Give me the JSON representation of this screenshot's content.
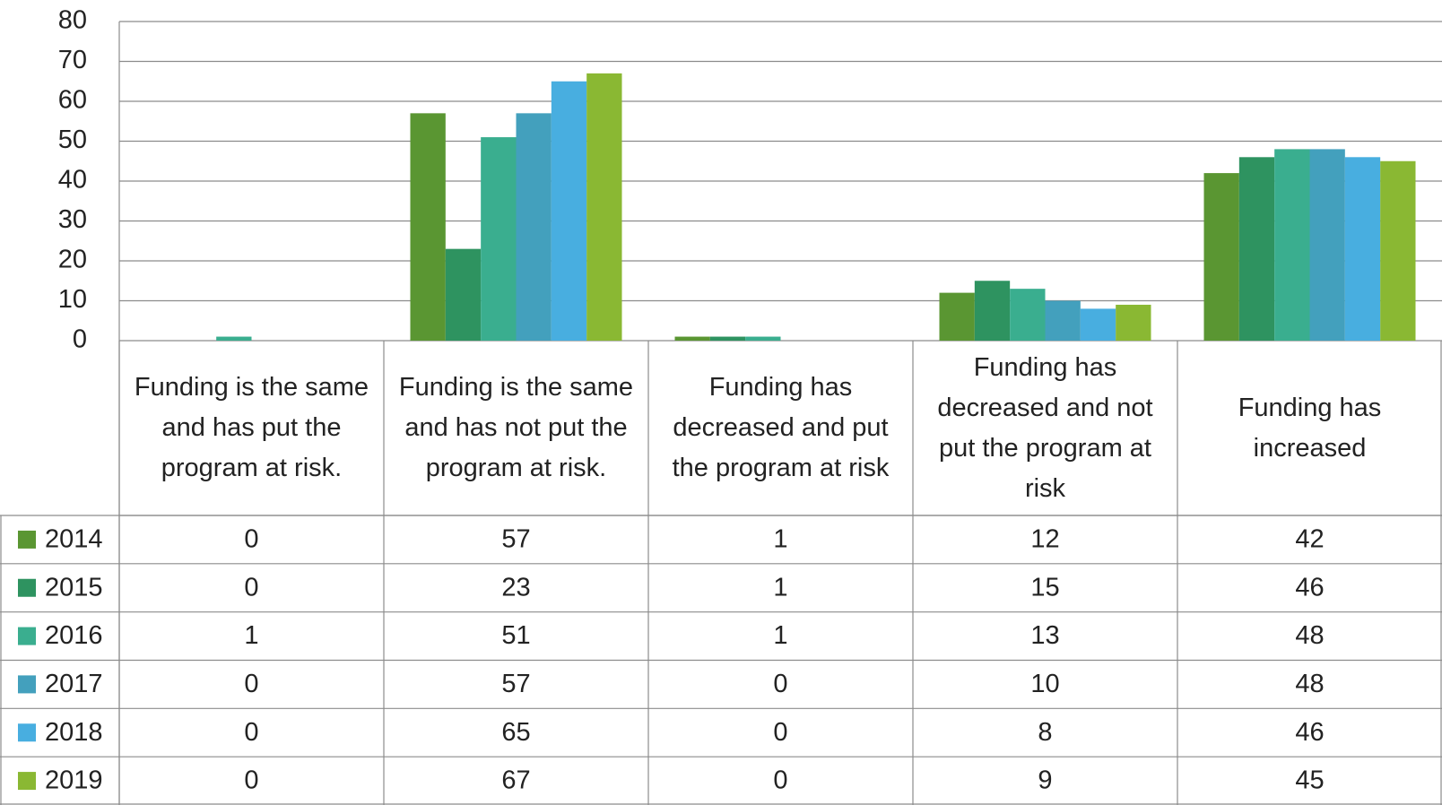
{
  "chart_data": {
    "type": "bar",
    "categories": [
      "Funding is the same and has put the program at risk.",
      "Funding is the same and has not put the program at risk.",
      "Funding has decreased and put the program at risk",
      "Funding has decreased and not put the program at risk",
      "Funding has increased"
    ],
    "series": [
      {
        "name": "2014",
        "color": "#5a9632",
        "values": [
          0,
          57,
          1,
          12,
          42
        ]
      },
      {
        "name": "2015",
        "color": "#2e9360",
        "values": [
          0,
          23,
          1,
          15,
          46
        ]
      },
      {
        "name": "2016",
        "color": "#3aae8f",
        "values": [
          1,
          51,
          1,
          13,
          48
        ]
      },
      {
        "name": "2017",
        "color": "#43a0bd",
        "values": [
          0,
          57,
          0,
          10,
          48
        ]
      },
      {
        "name": "2018",
        "color": "#48aee0",
        "values": [
          0,
          65,
          0,
          8,
          46
        ]
      },
      {
        "name": "2019",
        "color": "#8ab833",
        "values": [
          0,
          67,
          0,
          9,
          45
        ]
      }
    ],
    "ylim": [
      0,
      80
    ],
    "yticks": [
      0,
      10,
      20,
      30,
      40,
      50,
      60,
      70,
      80
    ],
    "grid": true,
    "legend": "table"
  }
}
